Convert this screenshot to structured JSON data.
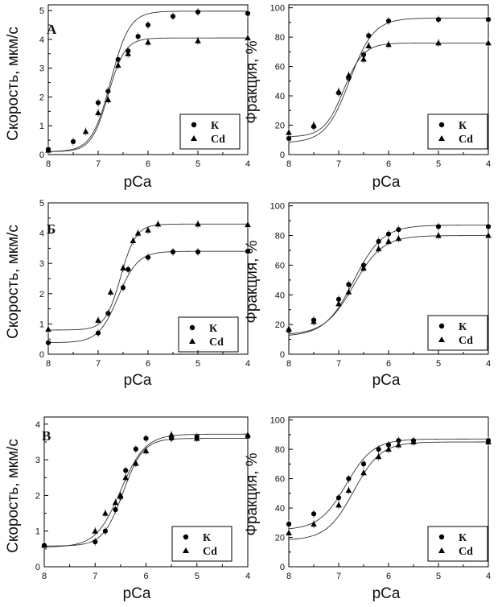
{
  "chart_data": [
    {
      "type": "scatter",
      "panel": "А",
      "xlabel": "pCa",
      "ylabel": "Скорость, мкм/с",
      "xlim": [
        8,
        4
      ],
      "ylim": [
        0,
        5.2
      ],
      "yticks": [
        0,
        1,
        2,
        3,
        4,
        5
      ],
      "xticks": [
        8,
        7,
        6,
        5,
        4
      ],
      "series": [
        {
          "name": "К",
          "marker": "circle",
          "x": [
            8,
            7.5,
            7,
            6.8,
            6.6,
            6.4,
            6.2,
            6,
            5.5,
            5,
            4
          ],
          "y": [
            0.18,
            0.45,
            1.8,
            2.2,
            3.3,
            3.6,
            4.1,
            4.5,
            4.8,
            4.95,
            4.9
          ],
          "fit": {
            "min": 0.1,
            "max": 4.98,
            "pca50": 6.75,
            "n": 2.3
          }
        },
        {
          "name": "Cd",
          "marker": "triangle",
          "x": [
            8,
            7.25,
            7,
            6.8,
            6.6,
            6.4,
            6,
            5,
            4
          ],
          "y": [
            0.15,
            0.8,
            1.45,
            1.9,
            3.1,
            3.5,
            3.9,
            3.95,
            4.05
          ],
          "fit": {
            "min": 0.1,
            "max": 4.05,
            "pca50": 6.8,
            "n": 2.6
          }
        }
      ]
    },
    {
      "type": "scatter",
      "xlabel": "pCa",
      "ylabel": "Фракция, %",
      "xlim": [
        8,
        4
      ],
      "ylim": [
        0,
        102
      ],
      "yticks": [
        0,
        20,
        40,
        60,
        80,
        100
      ],
      "xticks": [
        8,
        7,
        6,
        5,
        4
      ],
      "series": [
        {
          "name": "К",
          "marker": "circle",
          "x": [
            8,
            7.5,
            7,
            6.8,
            6.5,
            6.4,
            6,
            5,
            4
          ],
          "y": [
            11,
            19,
            42,
            52,
            68,
            81,
            91,
            92,
            92
          ],
          "fit": {
            "min": 8,
            "max": 93,
            "pca50": 6.78,
            "n": 1.8
          }
        },
        {
          "name": "Cd",
          "marker": "triangle",
          "x": [
            8,
            7.5,
            7,
            6.8,
            6.5,
            6.4,
            6,
            5,
            4
          ],
          "y": [
            15,
            20,
            43,
            54,
            65,
            74,
            75,
            76,
            76
          ],
          "fit": {
            "min": 12,
            "max": 76,
            "pca50": 6.9,
            "n": 2.2
          }
        }
      ]
    },
    {
      "type": "scatter",
      "panel": "Б",
      "xlabel": "pCa",
      "ylabel": "Скорость, мкм/с",
      "xlim": [
        8,
        4
      ],
      "ylim": [
        0,
        5
      ],
      "yticks": [
        0,
        1,
        2,
        3,
        4,
        5
      ],
      "xticks": [
        8,
        7,
        6,
        5,
        4
      ],
      "series": [
        {
          "name": "К",
          "marker": "circle",
          "x": [
            8,
            7,
            6.8,
            6.5,
            6.4,
            6,
            5.5,
            5,
            4
          ],
          "y": [
            0.38,
            0.7,
            1.35,
            2.2,
            2.8,
            3.2,
            3.38,
            3.38,
            3.4
          ],
          "fit": {
            "min": 0.38,
            "max": 3.4,
            "pca50": 6.6,
            "n": 2.2
          }
        },
        {
          "name": "Cd",
          "marker": "triangle",
          "x": [
            8,
            7,
            6.75,
            6.5,
            6.3,
            6.2,
            6,
            5.8,
            5,
            4
          ],
          "y": [
            0.82,
            1.12,
            2.05,
            2.85,
            3.75,
            4.0,
            4.1,
            4.3,
            4.3,
            4.28
          ],
          "fit": {
            "min": 0.8,
            "max": 4.3,
            "pca50": 6.55,
            "n": 2.8
          }
        }
      ]
    },
    {
      "type": "scatter",
      "xlabel": "pCa",
      "ylabel": "Фракция, %",
      "xlim": [
        8,
        4
      ],
      "ylim": [
        0,
        102
      ],
      "yticks": [
        0,
        20,
        40,
        60,
        80,
        100
      ],
      "xticks": [
        8,
        7,
        6,
        5,
        4
      ],
      "series": [
        {
          "name": "К",
          "marker": "circle",
          "x": [
            8,
            7.5,
            7,
            6.8,
            6.5,
            6.2,
            6,
            5.8,
            5,
            4
          ],
          "y": [
            16,
            23,
            37,
            47,
            60,
            76,
            81,
            84,
            86,
            86
          ],
          "fit": {
            "min": 12,
            "max": 87,
            "pca50": 6.7,
            "n": 1.5
          }
        },
        {
          "name": "Cd",
          "marker": "triangle",
          "x": [
            8,
            7.5,
            7,
            6.8,
            6.5,
            6.2,
            6,
            5.8,
            5,
            4
          ],
          "y": [
            17,
            22,
            34,
            42,
            58,
            71,
            76,
            78,
            80,
            80
          ],
          "fit": {
            "min": 13,
            "max": 80,
            "pca50": 6.7,
            "n": 1.5
          }
        }
      ]
    },
    {
      "type": "scatter",
      "panel": "В",
      "xlabel": "pCa",
      "ylabel": "Скорость, мкм/с",
      "xlim": [
        8,
        4
      ],
      "ylim": [
        0,
        4.2
      ],
      "yticks": [
        0,
        1,
        2,
        3,
        4
      ],
      "xticks": [
        8,
        7,
        6,
        5,
        4
      ],
      "series": [
        {
          "name": "К",
          "marker": "circle",
          "x": [
            8,
            7,
            6.8,
            6.6,
            6.5,
            6.4,
            6.2,
            6,
            5.5,
            5,
            4
          ],
          "y": [
            0.6,
            0.7,
            1.0,
            1.6,
            1.95,
            2.7,
            3.3,
            3.6,
            3.6,
            3.65,
            3.65
          ],
          "fit": {
            "min": 0.58,
            "max": 3.6,
            "pca50": 6.45,
            "n": 2.2
          }
        },
        {
          "name": "Cd",
          "marker": "triangle",
          "x": [
            8,
            7,
            6.8,
            6.6,
            6.5,
            6.4,
            6.2,
            6,
            5.5,
            5,
            4
          ],
          "y": [
            0.6,
            1.0,
            1.5,
            1.8,
            2.0,
            2.5,
            2.9,
            3.25,
            3.7,
            3.6,
            3.7
          ],
          "fit": {
            "min": 0.55,
            "max": 3.72,
            "pca50": 6.5,
            "n": 1.8
          }
        }
      ]
    },
    {
      "type": "scatter",
      "xlabel": "pCa",
      "ylabel": "Фракция, %",
      "xlim": [
        8,
        4
      ],
      "ylim": [
        0,
        102
      ],
      "yticks": [
        0,
        20,
        40,
        60,
        80,
        100
      ],
      "xticks": [
        8,
        7,
        6,
        5,
        4
      ],
      "series": [
        {
          "name": "К",
          "marker": "circle",
          "x": [
            8,
            7.5,
            7,
            6.8,
            6.5,
            6.2,
            6,
            5.8,
            5.5,
            4
          ],
          "y": [
            29,
            36,
            47,
            60,
            70,
            80,
            83,
            86,
            86,
            86
          ],
          "fit": {
            "min": 25,
            "max": 87,
            "pca50": 6.85,
            "n": 1.6
          }
        },
        {
          "name": "Cd",
          "marker": "triangle",
          "x": [
            8,
            7.5,
            7,
            6.8,
            6.5,
            6.2,
            6,
            5.8,
            5.5,
            4
          ],
          "y": [
            23,
            29,
            42,
            52,
            64,
            75,
            80,
            83,
            85,
            85
          ],
          "fit": {
            "min": 18,
            "max": 85,
            "pca50": 6.7,
            "n": 1.6
          }
        }
      ]
    }
  ]
}
